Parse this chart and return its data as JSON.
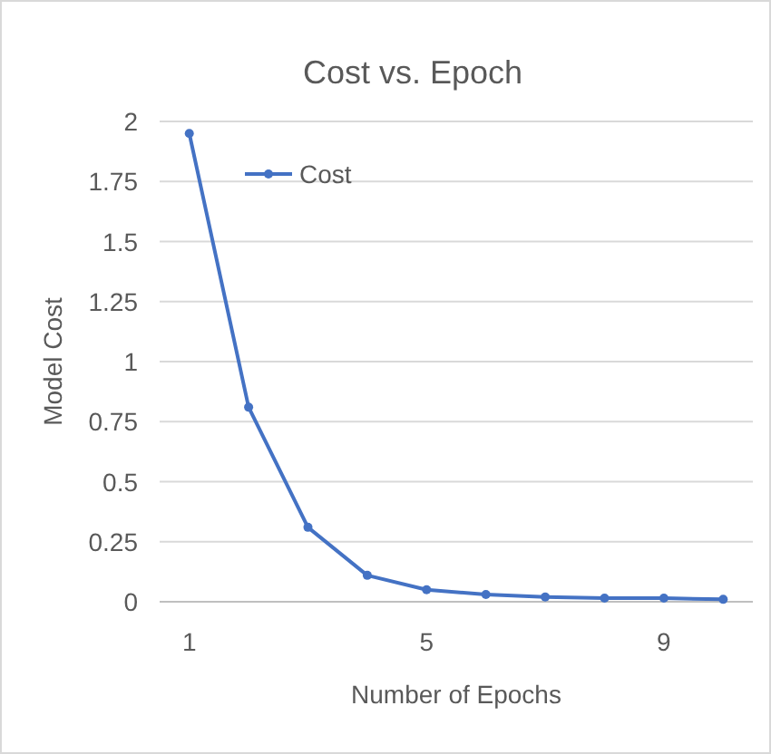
{
  "chart_data": {
    "type": "line",
    "title": "Cost vs. Epoch",
    "xlabel": "Number of Epochs",
    "ylabel": "Model Cost",
    "categories": [
      "1",
      null,
      null,
      null,
      "5",
      null,
      null,
      null,
      "9",
      null
    ],
    "series": [
      {
        "name": "Cost",
        "color": "#4472c4",
        "values": [
          1.95,
          0.81,
          0.31,
          0.11,
          0.05,
          0.03,
          0.02,
          0.015,
          0.015,
          0.01
        ]
      }
    ],
    "ylim": [
      0,
      2
    ],
    "yticks": [
      0,
      0.25,
      0.5,
      0.75,
      1,
      1.25,
      1.5,
      1.75,
      2
    ],
    "grid": "y",
    "legend": "top left",
    "marker": "circle",
    "line_style": "solid"
  }
}
